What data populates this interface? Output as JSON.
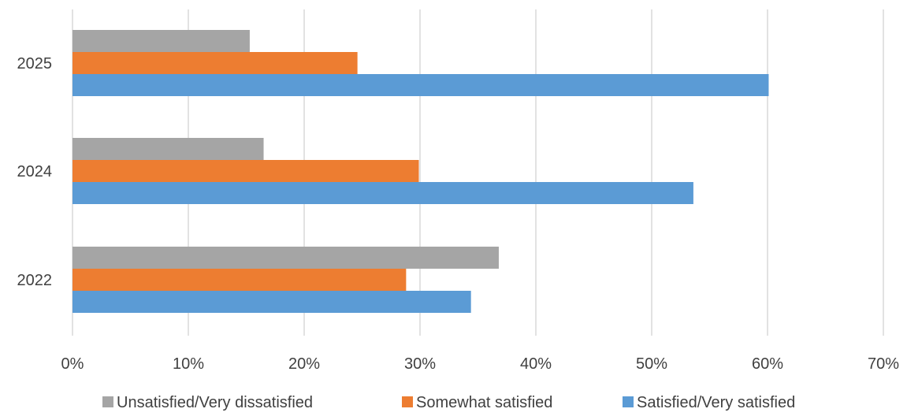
{
  "chart_data": {
    "type": "bar",
    "orientation": "horizontal",
    "title": "",
    "xlabel": "",
    "ylabel": "",
    "categories": [
      "2022",
      "2024",
      "2025"
    ],
    "series": [
      {
        "name": "Unsatisfied/Very dissatisfied",
        "color": "#a5a5a5",
        "values": [
          36.8,
          16.5,
          15.3
        ]
      },
      {
        "name": "Somewhat satisfied",
        "color": "#ed7d31",
        "values": [
          28.8,
          29.9,
          24.6
        ]
      },
      {
        "name": "Satisfied/Very satisfied",
        "color": "#5b9bd5",
        "values": [
          34.4,
          53.6,
          60.1
        ]
      }
    ],
    "xlim": [
      0,
      70
    ],
    "x_ticks": [
      0,
      10,
      20,
      30,
      40,
      50,
      60,
      70
    ],
    "x_tick_labels": [
      "0%",
      "10%",
      "20%",
      "30%",
      "40%",
      "50%",
      "60%",
      "70%"
    ],
    "grid": "vertical",
    "legend_position": "bottom"
  }
}
